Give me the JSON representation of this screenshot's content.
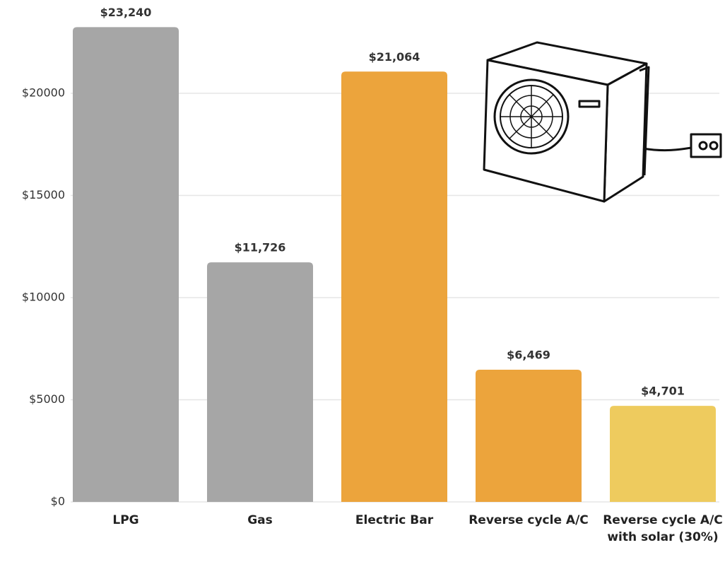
{
  "chart_data": {
    "type": "bar",
    "categories": [
      "LPG",
      "Gas",
      "Electric Bar",
      "Reverse cycle A/C",
      "Reverse cycle A/C with solar (30%)"
    ],
    "values": [
      23240,
      11726,
      21064,
      6469,
      4701
    ],
    "value_labels": [
      "$23,240",
      "$11,726",
      "$21,064",
      "$6,469",
      "$4,701"
    ],
    "colors": [
      "#a6a6a6",
      "#a6a6a6",
      "#eca43c",
      "#eca43c",
      "#eecb5e"
    ],
    "ylim": [
      0,
      24000
    ],
    "yticks": [
      {
        "value": 0,
        "label": "$0"
      },
      {
        "value": 5000,
        "label": "$5000"
      },
      {
        "value": 10000,
        "label": "$10000"
      },
      {
        "value": 15000,
        "label": "$15000"
      },
      {
        "value": 20000,
        "label": "$20000"
      }
    ],
    "grid": true
  }
}
